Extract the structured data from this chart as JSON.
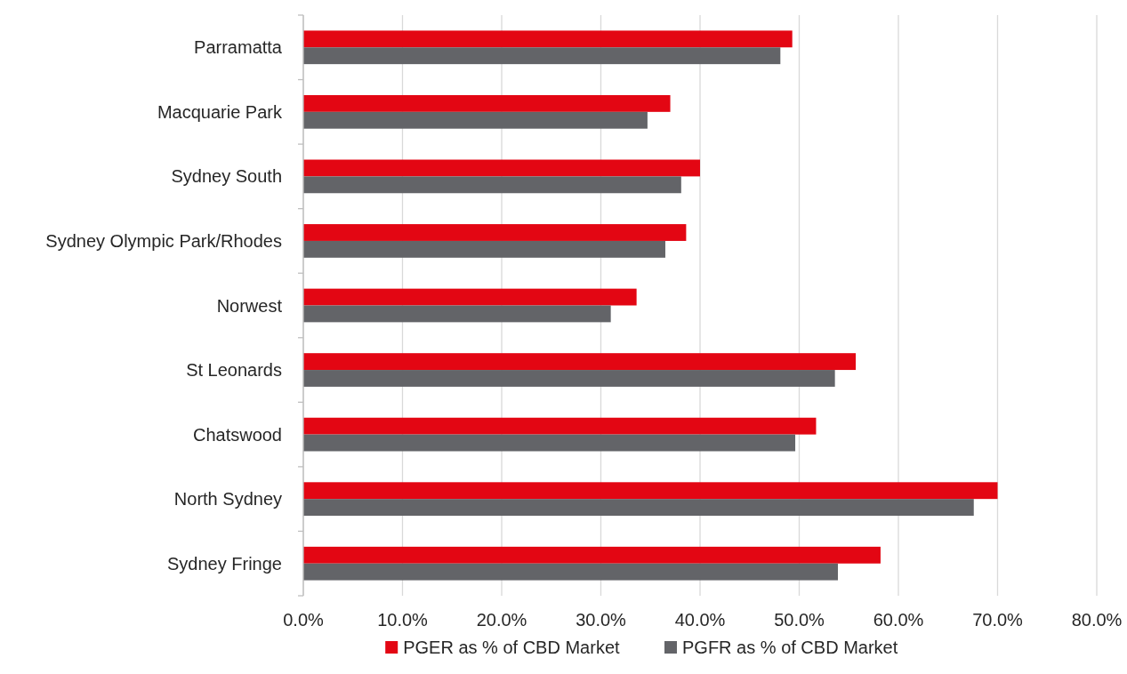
{
  "chart_data": {
    "type": "bar",
    "orientation": "horizontal",
    "categories": [
      "Parramatta",
      "Macquarie Park",
      "Sydney South",
      "Sydney Olympic Park/Rhodes",
      "Norwest",
      "St Leonards",
      "Chatswood",
      "North Sydney",
      "Sydney Fringe"
    ],
    "series": [
      {
        "name": "PGER as % of CBD Market",
        "color": "#e30613",
        "values": [
          49.3,
          37.0,
          40.0,
          38.6,
          33.6,
          55.7,
          51.7,
          70.0,
          58.2
        ]
      },
      {
        "name": "PGFR as % of CBD Market",
        "color": "#636468",
        "values": [
          48.1,
          34.7,
          38.1,
          36.5,
          31.0,
          53.6,
          49.6,
          67.6,
          53.9
        ]
      }
    ],
    "xlim": [
      0,
      80
    ],
    "xticks": [
      {
        "value": 0,
        "label": "0.0%"
      },
      {
        "value": 10,
        "label": "10.0%"
      },
      {
        "value": 20,
        "label": "20.0%"
      },
      {
        "value": 30,
        "label": "30.0%"
      },
      {
        "value": 40,
        "label": "40.0%"
      },
      {
        "value": 50,
        "label": "50.0%"
      },
      {
        "value": 60,
        "label": "60.0%"
      },
      {
        "value": 70,
        "label": "70.0%"
      },
      {
        "value": 80,
        "label": "80.0%"
      }
    ],
    "grid": "x",
    "legend": "bottom"
  }
}
